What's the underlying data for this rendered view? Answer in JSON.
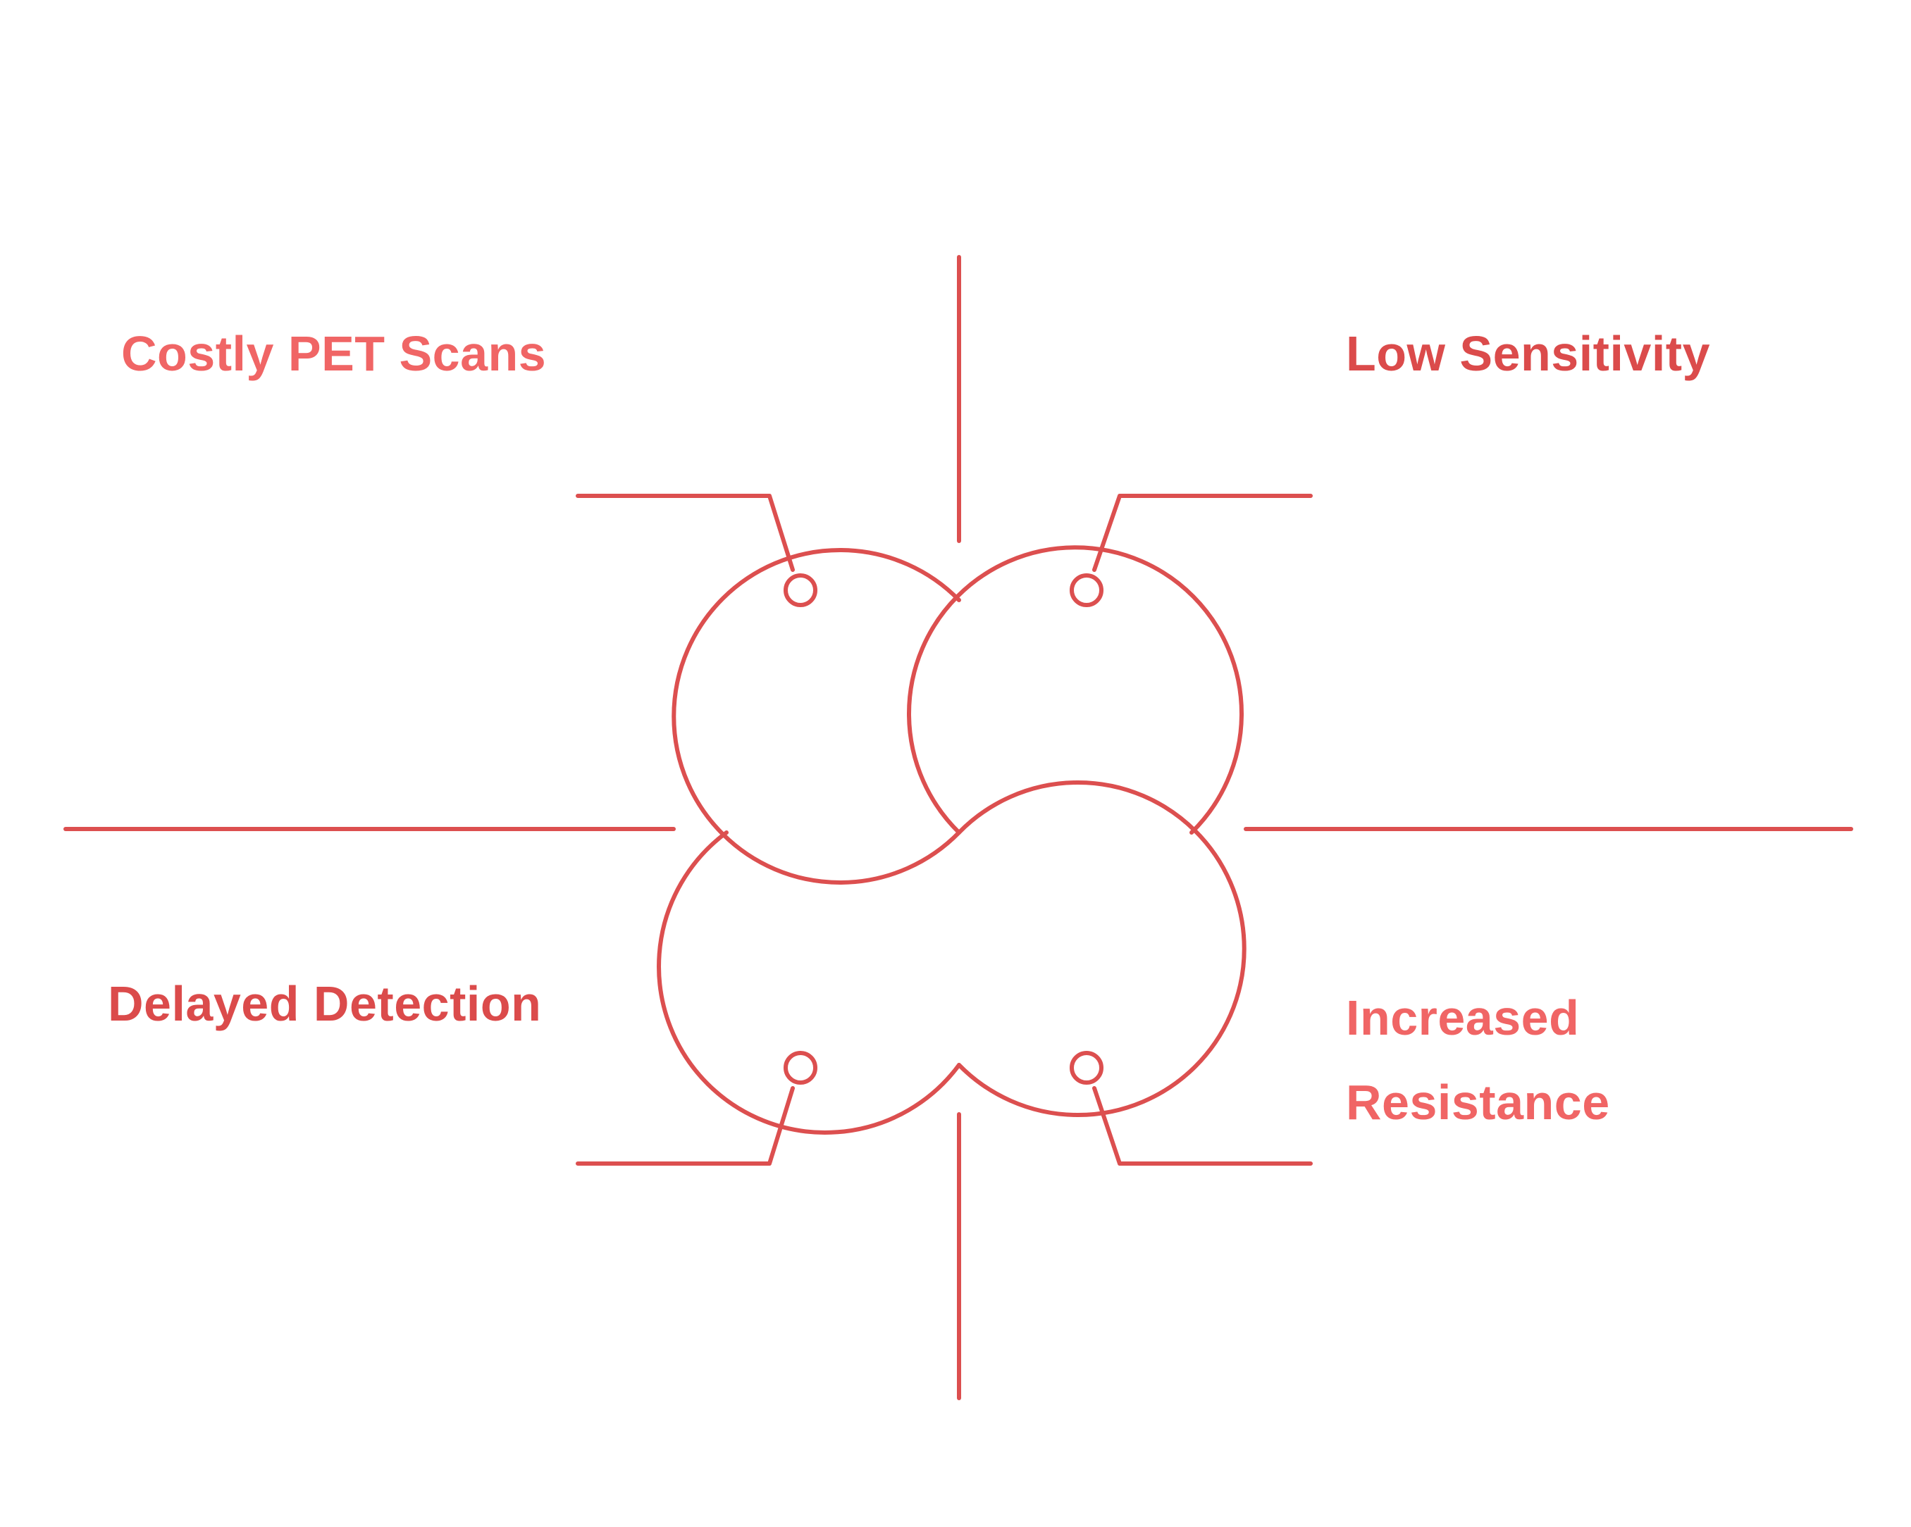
{
  "diagram": {
    "quadrants": {
      "top_left": {
        "label": "Costly PET Scans"
      },
      "top_right": {
        "label": "Low Sensitivity"
      },
      "bottom_left": {
        "label": "Delayed Detection"
      },
      "bottom_right": {
        "label_line1": "Increased",
        "label_line2": "Resistance"
      }
    }
  },
  "colors": {
    "stroke": "#dc4f4f",
    "label_light": "#f06565",
    "label_dark": "#db4b4b",
    "background": "#ffffff"
  }
}
